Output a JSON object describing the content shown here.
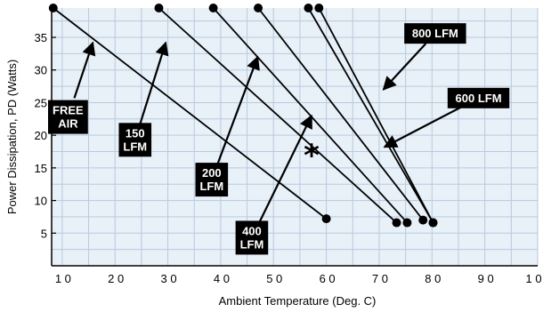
{
  "chart_data": {
    "type": "line",
    "title": "",
    "xlabel": "Ambient Temperature (Deg. C)",
    "ylabel": "Power Dissipation, PD (Watts)",
    "xlim": [
      8,
      100
    ],
    "ylim": [
      0,
      39.5
    ],
    "x_ticks": [
      10,
      20,
      30,
      40,
      50,
      60,
      70,
      80,
      90,
      100
    ],
    "x_tick_labels": [
      "1 0",
      "2 0",
      "3 0",
      "4 0",
      "5 0",
      "6 0",
      "7 0",
      "8 0",
      "9 0",
      "1 0 0"
    ],
    "y_ticks": [
      5,
      10,
      15,
      20,
      25,
      30,
      35
    ],
    "y_tick_labels": [
      "5",
      "10",
      "15",
      "20",
      "25",
      "30",
      "35"
    ],
    "grid": true,
    "background_color": "#e8f0f8",
    "grid_color": "#b8cade",
    "line_color": "#000000",
    "series": [
      {
        "name": "FREE AIR",
        "x": [
          8.3,
          60.0
        ],
        "y": [
          39.5,
          7.2
        ]
      },
      {
        "name": "150 LFM",
        "x": [
          28.3,
          73.3
        ],
        "y": [
          39.5,
          6.6
        ]
      },
      {
        "name": "200 LFM",
        "x": [
          38.6,
          75.3
        ],
        "y": [
          39.5,
          6.6
        ]
      },
      {
        "name": "400 LFM",
        "x": [
          47.1,
          78.3
        ],
        "y": [
          39.5,
          7.0
        ]
      },
      {
        "name": "600 LFM",
        "x": [
          56.6,
          80.2
        ],
        "y": [
          39.5,
          6.6
        ]
      },
      {
        "name": "800 LFM",
        "x": [
          58.6,
          80.2
        ],
        "y": [
          39.5,
          6.6
        ]
      }
    ],
    "annotations": [
      {
        "label": "FREE\nAIR",
        "point_x": 15.8,
        "point_y": 34.2,
        "box_x": 11.1,
        "box_y": 22.8
      },
      {
        "label": "150\nLFM",
        "point_x": 29.6,
        "point_y": 34.2,
        "box_x": 23.8,
        "box_y": 19.3
      },
      {
        "label": "200\nLFM",
        "point_x": 47.0,
        "point_y": 32.0,
        "box_x": 38.3,
        "box_y": 13.2
      },
      {
        "label": "400\nLFM",
        "point_x": 57.2,
        "point_y": 23.0,
        "box_x": 45.9,
        "box_y": 4.3
      },
      {
        "label": "800 LFM",
        "point_x": 70.8,
        "point_y": 27.0,
        "box_x": 80.6,
        "box_y": 35.6
      },
      {
        "label": "600 LFM",
        "point_x": 71.0,
        "point_y": 18.2,
        "box_x": 88.8,
        "box_y": 25.7
      }
    ],
    "marker_note": "*",
    "marker_x": 57.2,
    "marker_y": 17.2
  }
}
